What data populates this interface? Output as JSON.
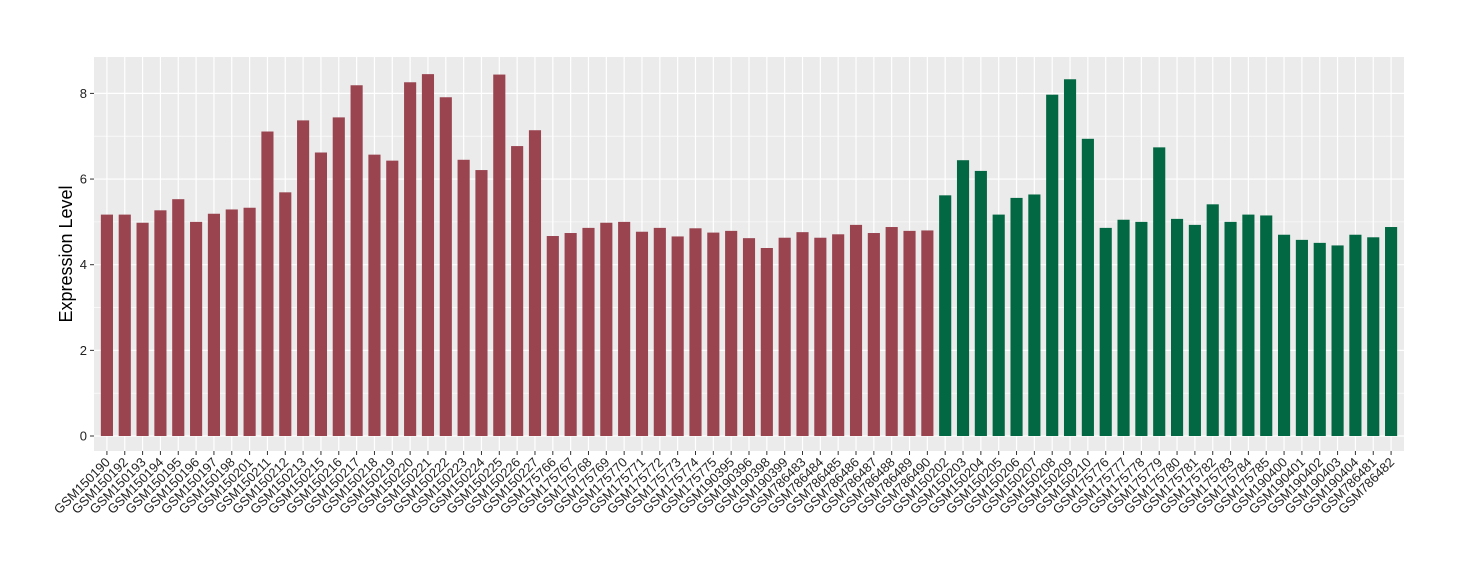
{
  "colors": {
    "group1": "#9A4450",
    "group2": "#026843",
    "panel": "#EBEBEB",
    "grid": "#FFFFFF"
  },
  "chart_data": {
    "type": "bar",
    "title": "",
    "xlabel": "",
    "ylabel": "Expression Level",
    "ylim": [
      -0.35,
      8.85
    ],
    "yticks": [
      0,
      2,
      4,
      6,
      8
    ],
    "grid": true,
    "legend": "none",
    "categories": [
      "GSM150190",
      "GSM150192",
      "GSM150193",
      "GSM150194",
      "GSM150195",
      "GSM150196",
      "GSM150197",
      "GSM150198",
      "GSM150201",
      "GSM150211",
      "GSM150212",
      "GSM150213",
      "GSM150215",
      "GSM150216",
      "GSM150217",
      "GSM150218",
      "GSM150219",
      "GSM150220",
      "GSM150221",
      "GSM150222",
      "GSM150223",
      "GSM150224",
      "GSM150225",
      "GSM150226",
      "GSM150227",
      "GSM175766",
      "GSM175767",
      "GSM175768",
      "GSM175769",
      "GSM175770",
      "GSM175771",
      "GSM175772",
      "GSM175773",
      "GSM175774",
      "GSM175775",
      "GSM190395",
      "GSM190396",
      "GSM190398",
      "GSM190399",
      "GSM786483",
      "GSM786484",
      "GSM786485",
      "GSM786486",
      "GSM786487",
      "GSM786488",
      "GSM786489",
      "GSM786490",
      "GSM150202",
      "GSM150203",
      "GSM150204",
      "GSM150205",
      "GSM150206",
      "GSM150207",
      "GSM150208",
      "GSM150209",
      "GSM150210",
      "GSM175776",
      "GSM175777",
      "GSM175778",
      "GSM175779",
      "GSM175780",
      "GSM175781",
      "GSM175782",
      "GSM175783",
      "GSM175784",
      "GSM175785",
      "GSM190400",
      "GSM190401",
      "GSM190402",
      "GSM190403",
      "GSM190404",
      "GSM786481",
      "GSM786482"
    ],
    "values": [
      5.17,
      5.17,
      4.98,
      5.27,
      5.53,
      5.0,
      5.19,
      5.29,
      5.33,
      7.11,
      5.69,
      7.37,
      6.62,
      7.44,
      8.19,
      6.57,
      6.43,
      8.26,
      8.45,
      7.91,
      6.45,
      6.21,
      8.44,
      6.77,
      7.14,
      4.67,
      4.74,
      4.86,
      4.98,
      5.0,
      4.77,
      4.86,
      4.66,
      4.85,
      4.75,
      4.79,
      4.62,
      4.39,
      4.63,
      4.76,
      4.63,
      4.71,
      4.93,
      4.74,
      4.88,
      4.79,
      4.8,
      5.62,
      6.44,
      6.19,
      5.17,
      5.56,
      5.64,
      7.97,
      8.33,
      6.94,
      4.86,
      5.05,
      5.0,
      6.74,
      5.07,
      4.93,
      5.41,
      5.0,
      5.17,
      5.15,
      4.7,
      4.58,
      4.51,
      4.45,
      4.7,
      4.64,
      4.88
    ],
    "groups": [
      1,
      1,
      1,
      1,
      1,
      1,
      1,
      1,
      1,
      1,
      1,
      1,
      1,
      1,
      1,
      1,
      1,
      1,
      1,
      1,
      1,
      1,
      1,
      1,
      1,
      1,
      1,
      1,
      1,
      1,
      1,
      1,
      1,
      1,
      1,
      1,
      1,
      1,
      1,
      1,
      1,
      1,
      1,
      1,
      1,
      1,
      1,
      2,
      2,
      2,
      2,
      2,
      2,
      2,
      2,
      2,
      2,
      2,
      2,
      2,
      2,
      2,
      2,
      2,
      2,
      2,
      2,
      2,
      2,
      2,
      2,
      2,
      2
    ]
  }
}
